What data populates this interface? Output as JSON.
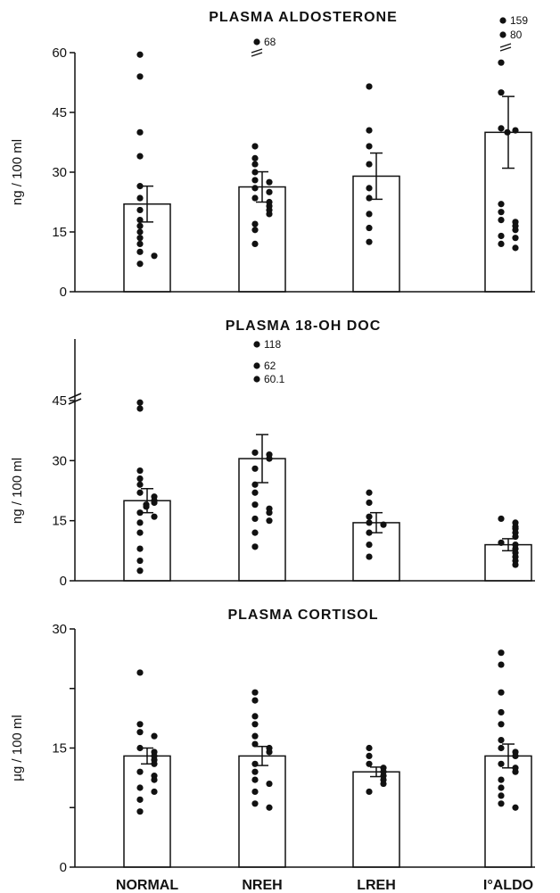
{
  "chart_data": [
    {
      "type": "bar",
      "title": "PLASMA ALDOSTERONE",
      "ylabel": "ng / 100 ml",
      "yticks": [
        0,
        15,
        30,
        45,
        60
      ],
      "ylim": [
        0,
        60
      ],
      "categories": [
        "NORMAL",
        "NREH",
        "LREH",
        "I°ALDO"
      ],
      "values": [
        22,
        26.3,
        29,
        40
      ],
      "sem": [
        4.5,
        3.8,
        5.8,
        9
      ],
      "points": [
        [
          59.5,
          54,
          40,
          34,
          26.5,
          23.5,
          20.5,
          18,
          16.5,
          15,
          13.5,
          12,
          10,
          9,
          7
        ],
        [
          36.5,
          33.5,
          32,
          30,
          28,
          27.5,
          26,
          25,
          23.5,
          22.5,
          21.5,
          20.5,
          19.5,
          17,
          15.5,
          12
        ],
        [
          51.5,
          40.5,
          36.5,
          32,
          26,
          23.5,
          19.5,
          16,
          12.5
        ],
        [
          57.5,
          50,
          41,
          40.5,
          40,
          22,
          20,
          18,
          17.5,
          16.5,
          15.5,
          14,
          13.5,
          12,
          11
        ]
      ],
      "outliers": [
        {
          "category": "NREH",
          "label": "68"
        },
        {
          "category": "I°ALDO",
          "label": "159"
        },
        {
          "category": "I°ALDO",
          "label": "80"
        }
      ]
    },
    {
      "type": "bar",
      "title": "PLASMA 18-OH DOC",
      "ylabel": "ng / 100 ml",
      "yticks": [
        0,
        15,
        30,
        45
      ],
      "ylim": [
        0,
        45
      ],
      "categories": [
        "NORMAL",
        "NREH",
        "LREH",
        "I°ALDO"
      ],
      "values": [
        20,
        30.5,
        14.5,
        9
      ],
      "sem": [
        3,
        6,
        2.5,
        1.5
      ],
      "points": [
        [
          44.5,
          43,
          27.5,
          25.5,
          24,
          22,
          21,
          20,
          19.5,
          19,
          18.5,
          17,
          16,
          14.5,
          12,
          8,
          5,
          2.5
        ],
        [
          32,
          31.5,
          30.5,
          28,
          24,
          22,
          19,
          18,
          17,
          15.5,
          15,
          12,
          8.5
        ],
        [
          22,
          19.5,
          16,
          14.5,
          14,
          12,
          9,
          6
        ],
        [
          15.5,
          14.5,
          13.5,
          13,
          12,
          11,
          9.5,
          9,
          8,
          7,
          6,
          5,
          4
        ]
      ],
      "outliers": [
        {
          "category": "NREH",
          "label": "118"
        },
        {
          "category": "NREH",
          "label": "62"
        },
        {
          "category": "NREH",
          "label": "60.1"
        }
      ]
    },
    {
      "type": "bar",
      "title": "PLASMA CORTISOL",
      "ylabel": "μg / 100 ml",
      "yticks": [
        0,
        15,
        30
      ],
      "ylim": [
        0,
        30
      ],
      "categories": [
        "NORMAL",
        "NREH",
        "LREH",
        "I°ALDO"
      ],
      "values": [
        14,
        14,
        12,
        14
      ],
      "sem": [
        1,
        1.2,
        0.6,
        1.5
      ],
      "points": [
        [
          24.5,
          18,
          17,
          16.5,
          15,
          14.5,
          14,
          13.5,
          13,
          12,
          11.5,
          11,
          10,
          9.5,
          8.5,
          7
        ],
        [
          22,
          21,
          19,
          18,
          16.5,
          15.5,
          15,
          14.5,
          13,
          12,
          11,
          10.5,
          9.5,
          8,
          7.5
        ],
        [
          15,
          14,
          13,
          12.5,
          12,
          11.5,
          11,
          10.5,
          9.5
        ],
        [
          27,
          25.5,
          22,
          19.5,
          18,
          16,
          15,
          14.5,
          14,
          13,
          12.5,
          12,
          11,
          10,
          9,
          8,
          7.5
        ]
      ],
      "outliers": []
    }
  ]
}
